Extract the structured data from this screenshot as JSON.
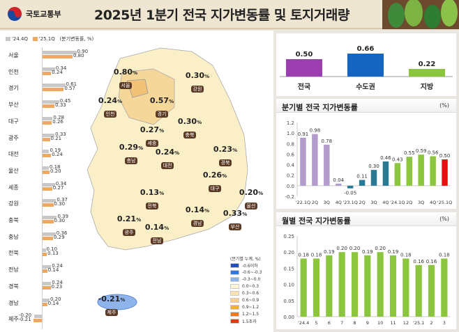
{
  "header": {
    "org": "국토교통부",
    "title": "2025년 1분기 전국 지가변동률 및 토지거래량"
  },
  "left": {
    "legend": {
      "a": "'24.4Q",
      "b": "'25.1Q",
      "unit": "(분기변동률, %)"
    },
    "colors": {
      "a": "#c8c8c8",
      "b": "#f0a860"
    },
    "regions": [
      {
        "name": "서울",
        "a": 0.9,
        "b": 0.8
      },
      {
        "name": "인천",
        "a": 0.34,
        "b": 0.24
      },
      {
        "name": "경기",
        "a": 0.61,
        "b": 0.57
      },
      {
        "name": "부산",
        "a": 0.45,
        "b": 0.33
      },
      {
        "name": "대구",
        "a": 0.28,
        "b": 0.26
      },
      {
        "name": "광주",
        "a": 0.33,
        "b": 0.21
      },
      {
        "name": "대전",
        "a": 0.19,
        "b": 0.24
      },
      {
        "name": "울산",
        "a": 0.18,
        "b": 0.2
      },
      {
        "name": "세종",
        "a": 0.34,
        "b": 0.27
      },
      {
        "name": "강원",
        "a": 0.37,
        "b": 0.3
      },
      {
        "name": "충북",
        "a": 0.39,
        "b": 0.3
      },
      {
        "name": "충남",
        "a": 0.36,
        "b": 0.29
      },
      {
        "name": "전북",
        "a": 0.1,
        "b": 0.13
      },
      {
        "name": "전남",
        "a": 0.24,
        "b": 0.14
      },
      {
        "name": "경북",
        "a": 0.24,
        "b": 0.23
      },
      {
        "name": "경남",
        "a": 0.2,
        "b": 0.14
      },
      {
        "name": "제주",
        "a": -0.2,
        "b": -0.21
      }
    ]
  },
  "map": {
    "labels": [
      {
        "name": "서울",
        "value": "0.80"
      },
      {
        "name": "인천",
        "value": "0.24"
      },
      {
        "name": "경기",
        "value": "0.57"
      },
      {
        "name": "강원",
        "value": "0.30"
      },
      {
        "name": "충북",
        "value": "0.30"
      },
      {
        "name": "세종",
        "value": "0.27"
      },
      {
        "name": "충남",
        "value": "0.29"
      },
      {
        "name": "대전",
        "value": "0.24"
      },
      {
        "name": "경북",
        "value": "0.23"
      },
      {
        "name": "대구",
        "value": "0.26"
      },
      {
        "name": "전북",
        "value": "0.13"
      },
      {
        "name": "울산",
        "value": "0.20"
      },
      {
        "name": "경남",
        "value": "0.14"
      },
      {
        "name": "부산",
        "value": "0.33"
      },
      {
        "name": "광주",
        "value": "0.21"
      },
      {
        "name": "전남",
        "value": "0.14"
      },
      {
        "name": "제주",
        "value": "-0.21"
      }
    ],
    "pct": "%",
    "legend": {
      "title": "(분기별 누계, %)",
      "items": [
        {
          "label": "-0.6이하",
          "color": "#1f4fc0"
        },
        {
          "label": "-0.6~-0.3",
          "color": "#2f78e0"
        },
        {
          "label": "-0.3~0.0",
          "color": "#8fb4ec"
        },
        {
          "label": "0.0~0.3",
          "color": "#fff6d8"
        },
        {
          "label": "0.3~0.6",
          "color": "#fbe3b0"
        },
        {
          "label": "0.6~0.9",
          "color": "#f6cf88"
        },
        {
          "label": "0.9~1.2",
          "color": "#f2b030"
        },
        {
          "label": "1.2~1.5",
          "color": "#ea7a20"
        },
        {
          "label": "1.5초과",
          "color": "#e03a10"
        }
      ]
    }
  },
  "chart_data": [
    {
      "type": "bar",
      "categories": [
        "전국",
        "수도권",
        "지방"
      ],
      "values": [
        0.5,
        0.66,
        0.22
      ],
      "colors": [
        "#9b3fb0",
        "#1565c0",
        "#8cc63f"
      ]
    },
    {
      "type": "bar",
      "title": "분기별 전국 지가변동률",
      "unit": "(%)",
      "categories": [
        "'22.1Q",
        "2Q",
        "3Q",
        "4Q",
        "'23.1Q",
        "2Q",
        "3Q",
        "4Q",
        "'24.1Q",
        "2Q",
        "3Q",
        "4Q",
        "'25.1Q"
      ],
      "values": [
        0.91,
        0.98,
        0.78,
        0.04,
        -0.05,
        0.11,
        0.3,
        0.46,
        0.43,
        0.55,
        0.59,
        0.56,
        0.5
      ],
      "colors": [
        "#b39ccc",
        "#b39ccc",
        "#b39ccc",
        "#b39ccc",
        "#2a7a94",
        "#2a7a94",
        "#2a7a94",
        "#2a7a94",
        "#8cc63f",
        "#8cc63f",
        "#8cc63f",
        "#8cc63f",
        "#e81010"
      ],
      "yticks": [
        -0.2,
        0.0,
        0.2,
        0.4,
        0.6,
        0.8,
        1.0,
        1.2
      ],
      "ylim": [
        -0.2,
        1.2
      ],
      "decimals": 1
    },
    {
      "type": "bar",
      "title": "월별 전국 지가변동률",
      "unit": "(%)",
      "categories": [
        "'24.4",
        "5",
        "6",
        "7",
        "8",
        "9",
        "10",
        "11",
        "12",
        "'25.1",
        "2",
        "3"
      ],
      "values": [
        0.18,
        0.18,
        0.19,
        0.2,
        0.2,
        0.19,
        0.2,
        0.19,
        0.18,
        0.16,
        0.16,
        0.18
      ],
      "colors": [
        "#8cc63f"
      ],
      "yticks": [
        0.0,
        0.05,
        0.1,
        0.15,
        0.2,
        0.25
      ],
      "ylim": [
        0,
        0.25
      ],
      "decimals": 2
    }
  ]
}
